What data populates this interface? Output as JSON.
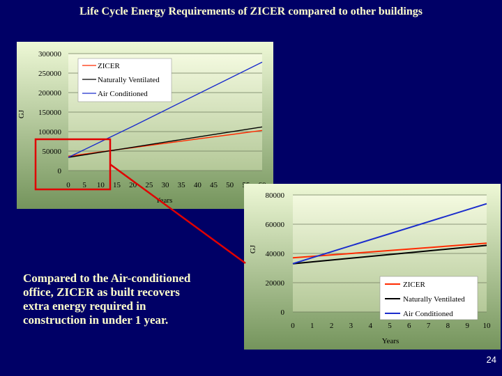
{
  "slide": {
    "title": "Life Cycle Energy Requirements of ZICER compared to other buildings",
    "caption_lines": [
      "Compared to the Air-conditioned",
      "office, ZICER as built recovers",
      "extra energy required in",
      "construction in under 1 year."
    ],
    "page_number": "24"
  },
  "colors": {
    "background": "#000066",
    "title_text": "#ffffcc",
    "zicer": "#ff2a00",
    "naturally_ventilated": "#000000",
    "air_conditioned": "#1a2ccc",
    "zoom_box": "#e00000"
  },
  "chart_data": [
    {
      "type": "line",
      "xlabel": "Years",
      "ylabel": "GJ",
      "xlim": [
        0,
        60
      ],
      "ylim": [
        0,
        300000
      ],
      "x_ticks": [
        "0",
        "5",
        "10",
        "15",
        "20",
        "25",
        "30",
        "35",
        "40",
        "45",
        "50",
        "55",
        "60"
      ],
      "y_ticks": [
        "300000",
        "250000",
        "200000",
        "150000",
        "100000",
        "50000",
        "0"
      ],
      "legend_position": "top-left",
      "grid": true,
      "series": [
        {
          "name": "ZICER",
          "x": [
            0,
            10,
            20,
            30,
            40,
            50,
            60
          ],
          "values": [
            37000,
            48000,
            59000,
            70000,
            81000,
            92000,
            103000
          ]
        },
        {
          "name": "Naturally Ventilated",
          "x": [
            0,
            10,
            20,
            30,
            40,
            50,
            60
          ],
          "values": [
            34000,
            47000,
            60000,
            73000,
            86000,
            99000,
            112000
          ]
        },
        {
          "name": "Air Conditioned",
          "x": [
            0,
            10,
            20,
            30,
            40,
            50,
            60
          ],
          "values": [
            34000,
            74000,
            114000,
            155000,
            196000,
            237000,
            278000
          ]
        }
      ]
    },
    {
      "type": "line",
      "xlabel": "Years",
      "ylabel": "GJ",
      "xlim": [
        0,
        10
      ],
      "ylim": [
        0,
        80000
      ],
      "x_ticks": [
        "0",
        "1",
        "2",
        "3",
        "4",
        "5",
        "6",
        "7",
        "8",
        "9",
        "10"
      ],
      "y_ticks": [
        "80000",
        "60000",
        "40000",
        "20000",
        "0"
      ],
      "legend_position": "bottom-right",
      "grid": true,
      "series": [
        {
          "name": "ZICER",
          "x": [
            0,
            10
          ],
          "values": [
            37000,
            47000
          ]
        },
        {
          "name": "Naturally Ventilated",
          "x": [
            0,
            10
          ],
          "values": [
            33000,
            45500
          ]
        },
        {
          "name": "Air Conditioned",
          "x": [
            0,
            10
          ],
          "values": [
            33000,
            74000
          ]
        }
      ]
    }
  ]
}
